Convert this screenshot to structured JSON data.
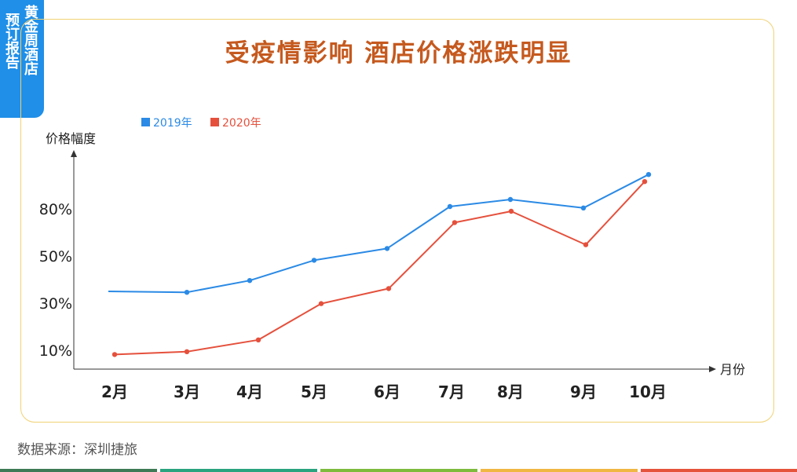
{
  "tag": {
    "col1": "黄金周酒店",
    "col2": "预订报告"
  },
  "title": "受疫情影响 酒店价格涨跌明显",
  "source": "数据来源：深圳捷旅",
  "colors": {
    "s2019": "#2b8ae5",
    "s2020": "#e5503c",
    "title": "#c5591e",
    "tag": "#1f8fe8",
    "frame": "#f1d274",
    "bottom_bar": [
      "#3d7a55",
      "#2aa37f",
      "#7dbb3d",
      "#f0b742",
      "#e6533c"
    ]
  },
  "chart_data": {
    "type": "line",
    "ylabel": "价格幅度",
    "xlabel": "月份",
    "categories": [
      "2月",
      "3月",
      "4月",
      "5月",
      "6月",
      "7月",
      "8月",
      "9月",
      "10月"
    ],
    "y_ticks": [
      {
        "label": "10%",
        "level": 1
      },
      {
        "label": "30%",
        "level": 2
      },
      {
        "label": "50%",
        "level": 3
      },
      {
        "label": "80%",
        "level": 4
      }
    ],
    "legend_position": "top-left",
    "grid": false,
    "series": [
      {
        "name": "2019年",
        "color": "#2b8ae5",
        "values": [
          2.25,
          2.23,
          2.48,
          2.91,
          3.16,
          4.05,
          4.2,
          4.02,
          4.73
        ]
      },
      {
        "name": "2020年",
        "color": "#e5503c",
        "values": [
          0.91,
          0.97,
          1.22,
          1.99,
          2.31,
          3.71,
          3.95,
          3.24,
          4.58
        ]
      }
    ]
  }
}
